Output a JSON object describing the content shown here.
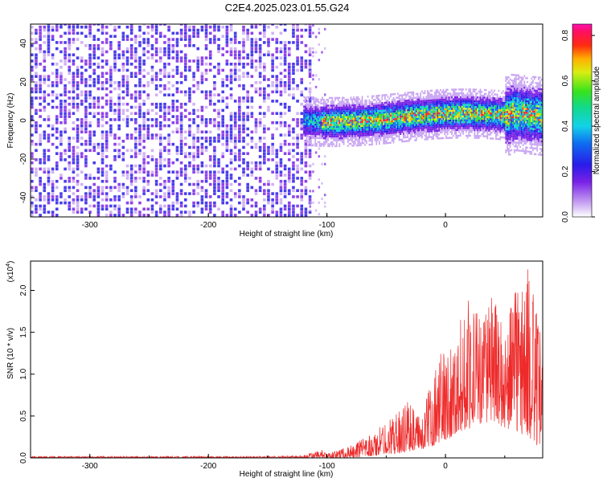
{
  "figure_title": "C2E4.2025.023.01.55.G24",
  "colors": {
    "spectrum_purple": "#7a22e6",
    "spectrum_light": "#d8b8f5",
    "snr_line": "#ee2a2a",
    "background": "#ffffff"
  },
  "chart_data": [
    {
      "type": "heatmap",
      "xlabel": "Height of straight line (km)",
      "ylabel": "Frequency (Hz)",
      "xlim": [
        -350,
        82
      ],
      "ylim": [
        -50,
        50
      ],
      "xticks": [
        "-300",
        "-200",
        "-100",
        "0"
      ],
      "yticks": [
        "-40",
        "-20",
        "0",
        "20",
        "40"
      ],
      "grid": false,
      "colorbar": {
        "label": "Normalized spectral amplitude",
        "range": [
          0.0,
          0.85
        ],
        "ticks": [
          "0.0",
          "0.2",
          "0.4",
          "0.6",
          "0.8"
        ],
        "colormap": "rainbow (white-purple-blue-cyan-green-yellow-red-magenta)"
      },
      "regions": [
        {
          "x": [
            -350,
            -115
          ],
          "frequency_range": [
            -50,
            50
          ],
          "amplitude": 0.05,
          "description_level": "low, broadband noise"
        },
        {
          "x": [
            -115,
            -100
          ],
          "frequency_range": [
            -50,
            50
          ],
          "amplitude": 0.02
        },
        {
          "x": [
            -120,
            82
          ],
          "frequency_center": 1,
          "frequency_halfwidth": 7,
          "amplitude_peak": 0.75
        }
      ]
    },
    {
      "type": "line",
      "xlabel": "Height of straight line (km)",
      "ylabel": "SNR (10 * v/v)",
      "y_multiplier": "(x10",
      "y_multiplier_exp": "4",
      "xlim": [
        -350,
        82
      ],
      "ylim": [
        0,
        2.35
      ],
      "xticks": [
        "-300",
        "-200",
        "-100",
        "0"
      ],
      "yticks": [
        "0.0",
        "0.5",
        "1.0",
        "1.5",
        "2.0"
      ],
      "grid": false,
      "series": [
        {
          "x": [
            -350,
            -300,
            -250,
            -200,
            -150,
            -120,
            -105,
            -100,
            -80,
            -60,
            -50,
            -40,
            -30,
            -20,
            -10,
            0,
            10,
            20,
            30,
            40,
            50,
            60,
            70,
            80
          ],
          "y_envelope_low": [
            0.0,
            0.0,
            0.0,
            0.0,
            0.0,
            0.0,
            0.0,
            0.0,
            0.0,
            0.02,
            0.05,
            0.05,
            0.08,
            0.1,
            0.15,
            0.2,
            0.3,
            0.35,
            0.4,
            0.45,
            0.35,
            0.3,
            0.25,
            0.1
          ],
          "y_envelope_high": [
            0.02,
            0.02,
            0.02,
            0.02,
            0.02,
            0.03,
            0.1,
            0.05,
            0.15,
            0.3,
            0.45,
            0.55,
            0.7,
            0.45,
            1.1,
            1.35,
            1.5,
            2.05,
            1.7,
            2.0,
            1.5,
            2.2,
            2.3,
            1.55
          ]
        }
      ]
    }
  ]
}
